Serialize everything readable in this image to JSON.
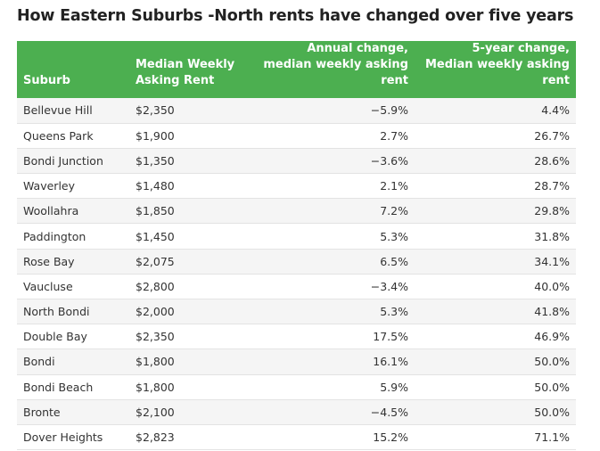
{
  "title": "How Eastern Suburbs -North rents have changed over five years",
  "chart_data": {
    "type": "table",
    "title": "How Eastern Suburbs -North rents have changed over five years",
    "columns": [
      "Suburb",
      "Median Weekly Asking Rent",
      "Annual change, median weekly asking rent",
      "5-year change, Median weekly asking rent"
    ],
    "rows": [
      [
        "Bellevue Hill",
        "$2,350",
        "−5.9%",
        "4.4%"
      ],
      [
        "Queens Park",
        "$1,900",
        "2.7%",
        "26.7%"
      ],
      [
        "Bondi Junction",
        "$1,350",
        "−3.6%",
        "28.6%"
      ],
      [
        "Waverley",
        "$1,480",
        "2.1%",
        "28.7%"
      ],
      [
        "Woollahra",
        "$1,850",
        "7.2%",
        "29.8%"
      ],
      [
        "Paddington",
        "$1,450",
        "5.3%",
        "31.8%"
      ],
      [
        "Rose Bay",
        "$2,075",
        "6.5%",
        "34.1%"
      ],
      [
        "Vaucluse",
        "$2,800",
        "−3.4%",
        "40.0%"
      ],
      [
        "North Bondi",
        "$2,000",
        "5.3%",
        "41.8%"
      ],
      [
        "Double Bay",
        "$2,350",
        "17.5%",
        "46.9%"
      ],
      [
        "Bondi",
        "$1,800",
        "16.1%",
        "50.0%"
      ],
      [
        "Bondi Beach",
        "$1,800",
        "5.9%",
        "50.0%"
      ],
      [
        "Bronte",
        "$2,100",
        "−4.5%",
        "50.0%"
      ],
      [
        "Dover Heights",
        "$2,823",
        "15.2%",
        "71.1%"
      ]
    ]
  },
  "colors": {
    "header_background": "#4caf50",
    "header_text": "#ffffff",
    "row_stripe": "#f5f5f5"
  }
}
